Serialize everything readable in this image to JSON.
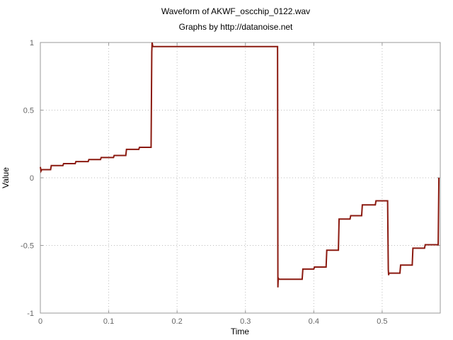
{
  "chart_data": {
    "type": "line",
    "title": "Waveform of AKWF_oscchip_0122.wav",
    "subtitle": "Graphs by http://datanoise.net",
    "xlabel": "Time",
    "ylabel": "Value",
    "xlim": [
      0,
      0.585
    ],
    "ylim": [
      -1,
      1
    ],
    "xticks": [
      0,
      0.1,
      0.2,
      0.3,
      0.4,
      0.5
    ],
    "xtick_labels": [
      "0",
      "0.1",
      "0.2",
      "0.3",
      "0.4",
      "0.5"
    ],
    "yticks": [
      -1,
      -0.5,
      0,
      0.5,
      1
    ],
    "ytick_labels": [
      "-1",
      "-0.5",
      "0",
      "0.5",
      "1"
    ],
    "grid": true,
    "legend": "none",
    "series": [
      {
        "color": "#8b1a10",
        "x": [
          0,
          0.001,
          0.002,
          0.015,
          0.016,
          0.033,
          0.034,
          0.051,
          0.052,
          0.07,
          0.071,
          0.088,
          0.089,
          0.107,
          0.108,
          0.125,
          0.126,
          0.144,
          0.145,
          0.162,
          0.163,
          0.1635,
          0.1645,
          0.165,
          0.347,
          0.3475,
          0.348,
          0.349,
          0.35,
          0.383,
          0.384,
          0.4,
          0.401,
          0.418,
          0.419,
          0.436,
          0.437,
          0.453,
          0.454,
          0.47,
          0.471,
          0.49,
          0.491,
          0.508,
          0.509,
          0.5095,
          0.51,
          0.511,
          0.526,
          0.527,
          0.544,
          0.545,
          0.562,
          0.563,
          0.582,
          0.583
        ],
        "y": [
          0.08,
          0.05,
          0.06,
          0.06,
          0.09,
          0.09,
          0.105,
          0.105,
          0.12,
          0.12,
          0.135,
          0.135,
          0.15,
          0.15,
          0.165,
          0.165,
          0.21,
          0.21,
          0.225,
          0.225,
          0.93,
          1.0,
          0.97,
          0.97,
          0.97,
          -0.81,
          -0.74,
          -0.75,
          -0.75,
          -0.75,
          -0.675,
          -0.675,
          -0.66,
          -0.66,
          -0.535,
          -0.535,
          -0.305,
          -0.305,
          -0.28,
          -0.28,
          -0.2,
          -0.2,
          -0.17,
          -0.17,
          -0.68,
          -0.72,
          -0.705,
          -0.705,
          -0.705,
          -0.645,
          -0.645,
          -0.52,
          -0.52,
          -0.495,
          -0.495,
          0.0
        ]
      }
    ]
  }
}
